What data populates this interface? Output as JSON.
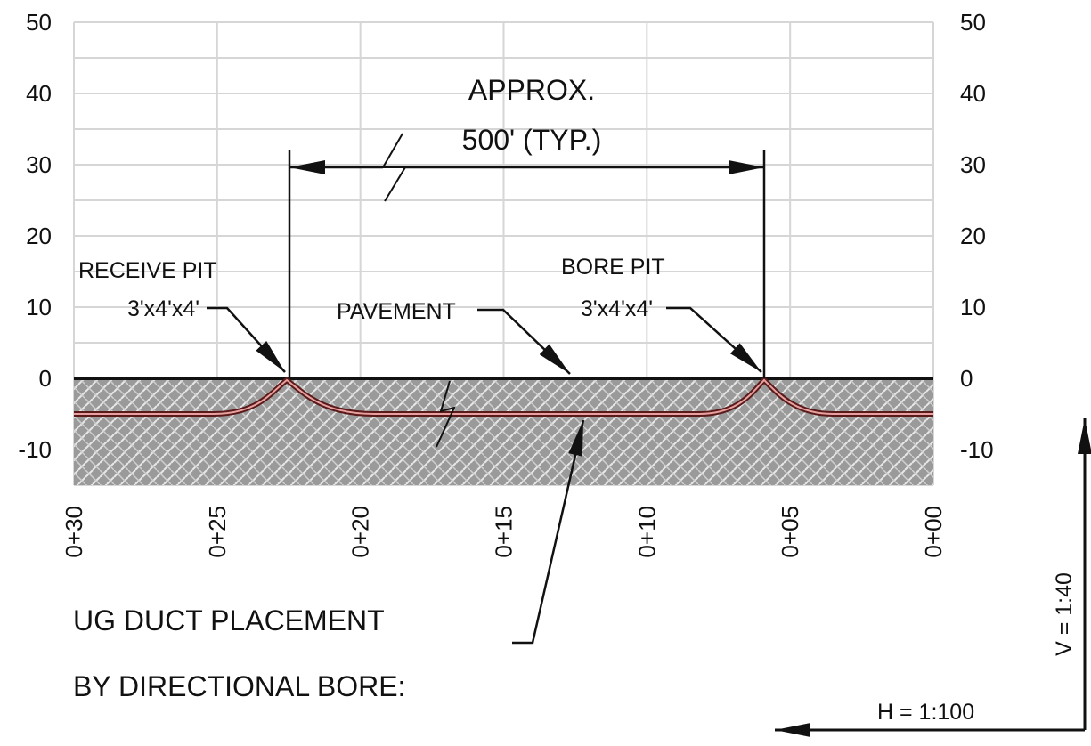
{
  "y_axis": {
    "ticks": [
      "50",
      "40",
      "30",
      "20",
      "10",
      "0",
      "-10"
    ]
  },
  "x_axis": {
    "stations": [
      "0+30",
      "0+25",
      "0+20",
      "0+15",
      "0+10",
      "0+05",
      "0+00"
    ]
  },
  "dimension": {
    "line1": "APPROX.",
    "line2": "500' (TYP.)"
  },
  "annotations": {
    "receive_pit": {
      "name": "RECEIVE PIT",
      "size": "3'x4'x4'"
    },
    "pavement": "PAVEMENT",
    "bore_pit": {
      "name": "BORE PIT",
      "size": "3'x4'x4'"
    },
    "duct": {
      "line1": "UG DUCT PLACEMENT",
      "line2": "BY DIRECTIONAL BORE:"
    }
  },
  "scale": {
    "vertical": "V = 1:40",
    "horizontal": "H = 1:100"
  }
}
